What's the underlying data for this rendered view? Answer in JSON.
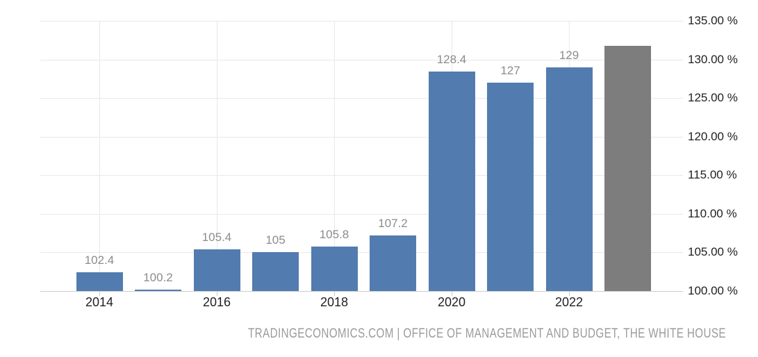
{
  "chart_data": {
    "type": "bar",
    "title": "",
    "categories": [
      "2014",
      "2015",
      "2016",
      "2017",
      "2018",
      "2019",
      "2020",
      "2021",
      "2022",
      "2023"
    ],
    "values": [
      102.4,
      100.2,
      105.4,
      105,
      105.8,
      107.2,
      128.4,
      127,
      129,
      131.8
    ],
    "data_labels": [
      "102.4",
      "100.2",
      "105.4",
      "105",
      "105.8",
      "107.2",
      "128.4",
      "127",
      "129",
      ""
    ],
    "bar_colors": [
      "#527cb0",
      "#527cb0",
      "#527cb0",
      "#527cb0",
      "#527cb0",
      "#527cb0",
      "#527cb0",
      "#527cb0",
      "#527cb0",
      "#7d7d7d"
    ],
    "ylim": [
      100,
      135
    ],
    "ytick_values": [
      100,
      105,
      110,
      115,
      120,
      125,
      130,
      135
    ],
    "ytick_labels": [
      "100.00 %",
      "105.00 %",
      "110.00 %",
      "115.00 %",
      "120.00 %",
      "125.00 %",
      "130.00 %",
      "135.00 %"
    ],
    "xtick_labels": [
      "2014",
      "2016",
      "2018",
      "2020",
      "2022"
    ],
    "y_axis_side": "right",
    "grid": true,
    "legend": false
  },
  "colors": {
    "bar_actual": "#527cb0",
    "bar_forecast": "#7d7d7d",
    "gridline": "#e8e8e8",
    "axis_line": "#cccccc",
    "axis_label_text": "#1f1f1f",
    "data_label_text": "#8c8c8c",
    "footer_text": "#9b9b9b",
    "background": "#ffffff"
  },
  "footer": {
    "attribution": "TRADINGECONOMICS.COM | OFFICE OF MANAGEMENT AND BUDGET, THE WHITE HOUSE"
  }
}
